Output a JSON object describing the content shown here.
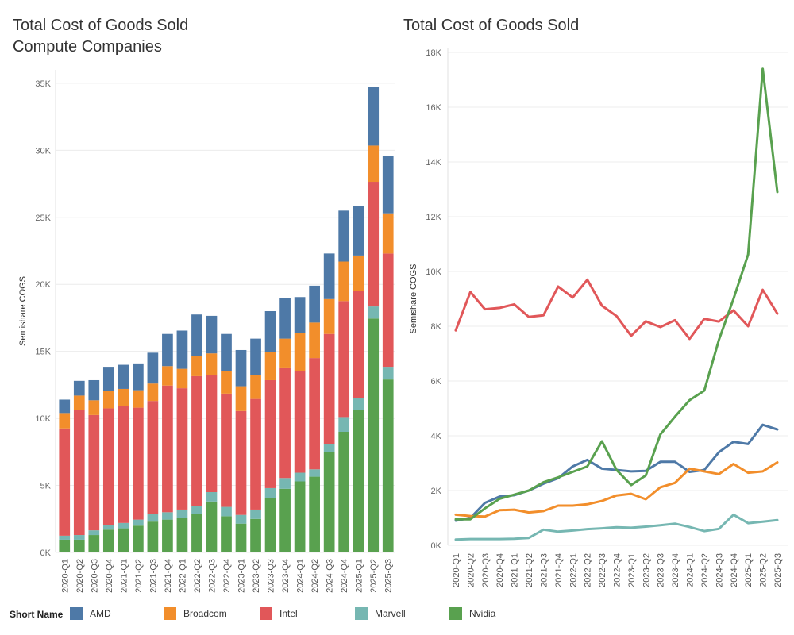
{
  "left_title_line1": "Total Cost of Goods Sold",
  "left_title_line2": "Compute Companies",
  "right_title": "Total Cost of Goods Sold",
  "legend": {
    "title": "Short Name",
    "items": [
      {
        "label": "AMD",
        "color": "#4e79a7"
      },
      {
        "label": "Broadcom",
        "color": "#f28e2b"
      },
      {
        "label": "Intel",
        "color": "#e15759"
      },
      {
        "label": "Marvell",
        "color": "#76b7b2"
      },
      {
        "label": "Nvidia",
        "color": "#59a14f"
      }
    ]
  },
  "chart_data": [
    {
      "type": "bar",
      "stacked": true,
      "title": "Total Cost of Goods Sold Compute Companies",
      "ylabel": "Semishare COGS",
      "ylim": [
        0,
        36000
      ],
      "yticks": [
        0,
        5000,
        10000,
        15000,
        20000,
        25000,
        30000,
        35000
      ],
      "ytick_labels": [
        "0K",
        "5K",
        "10K",
        "15K",
        "20K",
        "25K",
        "30K",
        "35K"
      ],
      "grid": true,
      "categories": [
        "2020-Q1",
        "2020-Q2",
        "2020-Q3",
        "2020-Q4",
        "2021-Q1",
        "2021-Q2",
        "2021-Q3",
        "2021-Q4",
        "2022-Q1",
        "2022-Q2",
        "2022-Q3",
        "2022-Q4",
        "2023-Q1",
        "2023-Q2",
        "2023-Q3",
        "2023-Q4",
        "2024-Q1",
        "2024-Q2",
        "2024-Q3",
        "2024-Q4",
        "2025-Q1",
        "2025-Q2",
        "2025-Q3"
      ],
      "series": [
        {
          "name": "Nvidia",
          "color": "#59a14f",
          "values": [
            950,
            950,
            1300,
            1700,
            1800,
            2000,
            2300,
            2450,
            2600,
            2850,
            3800,
            2700,
            2150,
            2500,
            4050,
            4750,
            5300,
            5650,
            7500,
            9000,
            10650,
            17450,
            12900
          ]
        },
        {
          "name": "Marvell",
          "color": "#76b7b2",
          "values": [
            300,
            350,
            350,
            350,
            400,
            450,
            600,
            550,
            600,
            600,
            700,
            700,
            650,
            700,
            750,
            800,
            650,
            550,
            600,
            1100,
            850,
            900,
            950
          ]
        },
        {
          "name": "Intel",
          "color": "#e15759",
          "values": [
            8000,
            9300,
            8600,
            8700,
            8700,
            8350,
            8400,
            9450,
            9050,
            9700,
            8750,
            8450,
            7750,
            8250,
            8050,
            8250,
            7600,
            8300,
            8200,
            8650,
            8000,
            9300,
            8450
          ]
        },
        {
          "name": "Broadcom",
          "color": "#f28e2b",
          "values": [
            1150,
            1100,
            1100,
            1300,
            1300,
            1300,
            1300,
            1450,
            1450,
            1500,
            1600,
            1700,
            1850,
            1800,
            2100,
            2150,
            2800,
            2650,
            2600,
            2950,
            2650,
            2700,
            3000
          ]
        },
        {
          "name": "AMD",
          "color": "#4e79a7",
          "values": [
            1000,
            1100,
            1500,
            1800,
            1800,
            2000,
            2300,
            2400,
            2850,
            3100,
            2800,
            2750,
            2700,
            2700,
            3050,
            3050,
            2700,
            2750,
            3400,
            3800,
            3700,
            4400,
            4250
          ]
        }
      ]
    },
    {
      "type": "line",
      "title": "Total Cost of Goods Sold",
      "ylabel": "Semishare COGS",
      "ylim": [
        0,
        18000
      ],
      "yticks": [
        0,
        2000,
        4000,
        6000,
        8000,
        10000,
        12000,
        14000,
        16000,
        18000
      ],
      "ytick_labels": [
        "0K",
        "2K",
        "4K",
        "6K",
        "8K",
        "10K",
        "12K",
        "14K",
        "16K",
        "18K"
      ],
      "grid": true,
      "x": [
        "2020-Q1",
        "2020-Q2",
        "2020-Q3",
        "2020-Q4",
        "2021-Q1",
        "2021-Q2",
        "2021-Q3",
        "2021-Q4",
        "2022-Q1",
        "2022-Q2",
        "2022-Q3",
        "2022-Q4",
        "2023-Q1",
        "2023-Q2",
        "2023-Q3",
        "2023-Q4",
        "2024-Q1",
        "2024-Q2",
        "2024-Q3",
        "2024-Q4",
        "2025-Q1",
        "2025-Q2",
        "2025-Q3"
      ],
      "series": [
        {
          "name": "AMD",
          "color": "#4e79a7",
          "values": [
            900,
            1000,
            1550,
            1780,
            1830,
            2000,
            2250,
            2450,
            2880,
            3120,
            2800,
            2750,
            2700,
            2720,
            3050,
            3050,
            2680,
            2750,
            3400,
            3780,
            3700,
            4400,
            4230
          ]
        },
        {
          "name": "Broadcom",
          "color": "#f28e2b",
          "values": [
            1120,
            1070,
            1050,
            1280,
            1300,
            1200,
            1250,
            1450,
            1450,
            1500,
            1620,
            1820,
            1880,
            1680,
            2120,
            2280,
            2800,
            2700,
            2600,
            2970,
            2650,
            2700,
            3030
          ]
        },
        {
          "name": "Intel",
          "color": "#e15759",
          "values": [
            7850,
            9250,
            8620,
            8670,
            8800,
            8340,
            8400,
            9450,
            9050,
            9700,
            8750,
            8370,
            7650,
            8180,
            7970,
            8220,
            7540,
            8270,
            8170,
            8580,
            8000,
            9330,
            8460
          ]
        },
        {
          "name": "Marvell",
          "color": "#76b7b2",
          "values": [
            210,
            230,
            230,
            230,
            240,
            270,
            570,
            500,
            540,
            590,
            620,
            660,
            640,
            680,
            730,
            790,
            670,
            520,
            600,
            1120,
            810,
            860,
            920
          ]
        },
        {
          "name": "Nvidia",
          "color": "#59a14f",
          "values": [
            950,
            950,
            1350,
            1700,
            1850,
            2000,
            2300,
            2480,
            2680,
            2880,
            3800,
            2750,
            2200,
            2550,
            4050,
            4700,
            5300,
            5650,
            7500,
            9000,
            10620,
            17400,
            12900
          ]
        }
      ]
    }
  ]
}
